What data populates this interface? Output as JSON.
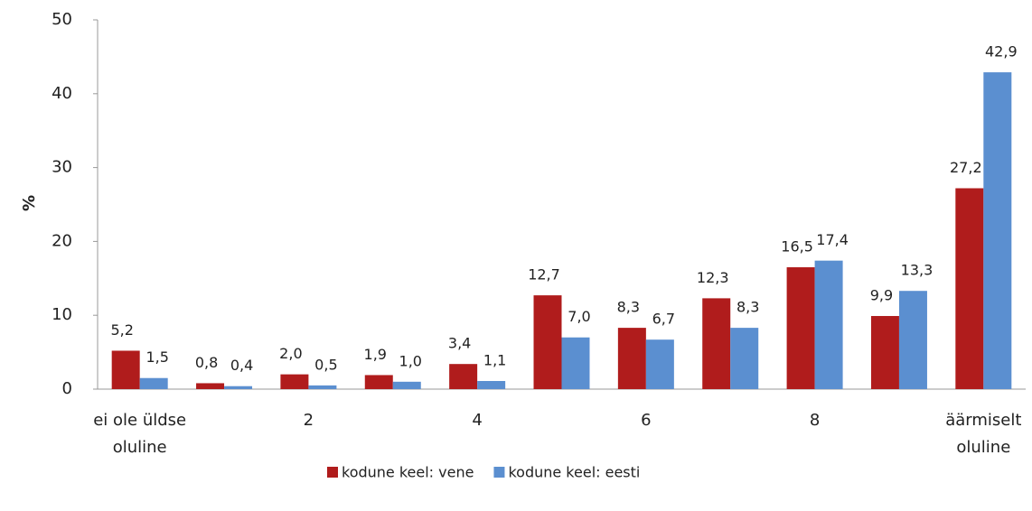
{
  "chart_data": {
    "type": "bar",
    "y_label": "%",
    "categories": [
      "ei ole üldse oluline",
      null,
      "2",
      null,
      "4",
      null,
      "6",
      null,
      "8",
      null,
      "äärmiselt oluline"
    ],
    "series": [
      {
        "name": "kodune keel: vene",
        "color": "#b01c1c",
        "values": [
          5.2,
          0.8,
          2.0,
          1.9,
          3.4,
          12.7,
          8.3,
          12.3,
          16.5,
          9.9,
          27.2
        ],
        "value_labels": [
          "5,2",
          "0,8",
          "2,0",
          "1,9",
          "3,4",
          "12,7",
          "8,3",
          "12,3",
          "16,5",
          "9,9",
          "27,2"
        ]
      },
      {
        "name": "kodune keel: eesti",
        "color": "#5b8fd0",
        "values": [
          1.5,
          0.4,
          0.5,
          1.0,
          1.1,
          7.0,
          6.7,
          8.3,
          17.4,
          13.3,
          42.9
        ],
        "value_labels": [
          "1,5",
          "0,4",
          "0,5",
          "1,0",
          "1,1",
          "7,0",
          "6,7",
          "8,3",
          "17,4",
          "13,3",
          "42,9"
        ]
      }
    ],
    "ylim": [
      0,
      50
    ],
    "yticks": [
      0,
      10,
      20,
      30,
      40,
      50
    ],
    "legend": "bottom"
  }
}
